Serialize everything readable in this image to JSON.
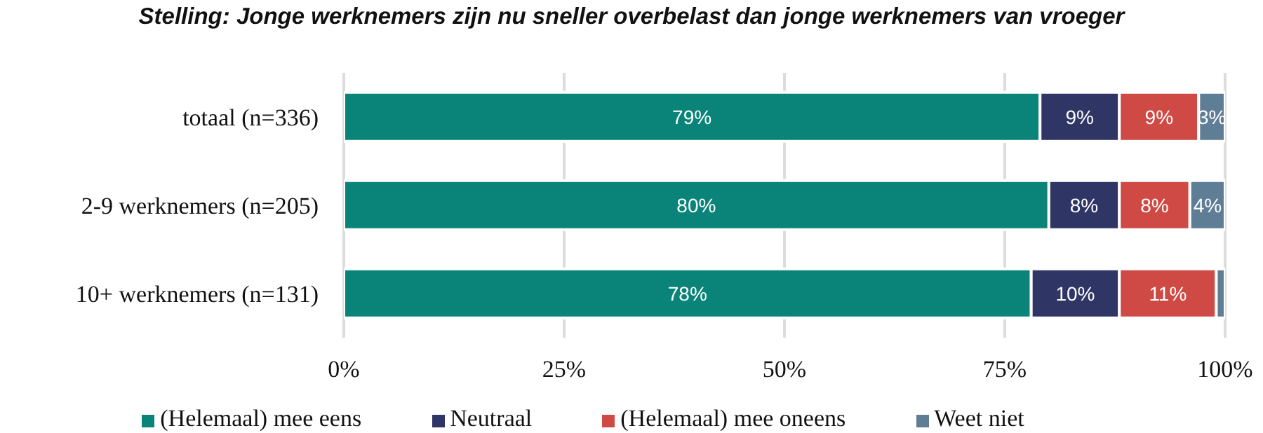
{
  "chart_data": {
    "type": "bar",
    "orientation": "horizontal",
    "stacked": true,
    "title": "Stelling: Jonge werknemers zijn nu sneller overbelast dan jonge werknemers van vroeger",
    "categories": [
      "totaal (n=336)",
      "2-9 werknemers (n=205)",
      "10+ werknemers (n=131)"
    ],
    "series": [
      {
        "name": "(Helemaal) mee eens",
        "color": "#0a8478",
        "values": [
          79,
          80,
          78
        ],
        "value_labels": [
          "79%",
          "80%",
          "78%"
        ]
      },
      {
        "name": "Neutraal",
        "color": "#2f3564",
        "values": [
          9,
          8,
          10
        ],
        "value_labels": [
          "9%",
          "8%",
          "10%"
        ]
      },
      {
        "name": "(Helemaal) mee oneens",
        "color": "#cf4a44",
        "values": [
          9,
          8,
          11
        ],
        "value_labels": [
          "9%",
          "8%",
          "11%"
        ]
      },
      {
        "name": "Weet niet",
        "color": "#5f7d95",
        "values": [
          3,
          4,
          1
        ],
        "value_labels": [
          "3%",
          "4%",
          null
        ]
      }
    ],
    "xlim": [
      0,
      100
    ],
    "xticks": [
      {
        "value": 0,
        "label": "0%"
      },
      {
        "value": 25,
        "label": "25%"
      },
      {
        "value": 50,
        "label": "50%"
      },
      {
        "value": 75,
        "label": "75%"
      },
      {
        "value": 100,
        "label": "100%"
      }
    ],
    "grid": "x",
    "legend": "bottom"
  }
}
